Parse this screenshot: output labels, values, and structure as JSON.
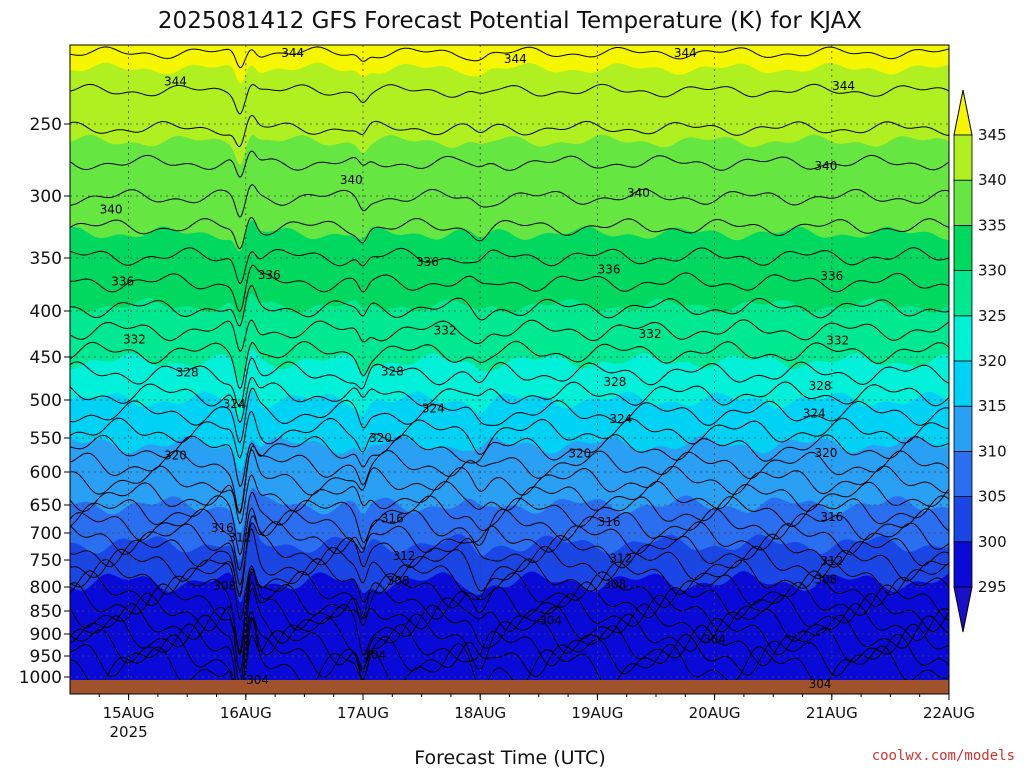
{
  "chart_data": {
    "type": "contour",
    "title": "2025081412 GFS Forecast Potential Temperature (K) for KJAX",
    "xlabel": "Forecast Time (UTC)",
    "ylabel": "",
    "x_ticks": [
      "15AUG",
      "16AUG",
      "17AUG",
      "18AUG",
      "19AUG",
      "20AUG",
      "21AUG",
      "22AUG"
    ],
    "x_tick_year": "2025",
    "x_range_days": [
      14.5,
      22.0
    ],
    "y_ticks": [
      250,
      300,
      350,
      400,
      450,
      500,
      550,
      600,
      650,
      700,
      750,
      800,
      850,
      900,
      950,
      1000
    ],
    "y_range_hpa": [
      200,
      1030
    ],
    "colorbar_levels": [
      295,
      300,
      305,
      310,
      315,
      320,
      325,
      330,
      335,
      340,
      345
    ],
    "colors": [
      "#0a0ad8",
      "#1a46e6",
      "#2a6ff0",
      "#2aa0f5",
      "#00d2f5",
      "#00f0d8",
      "#00e890",
      "#00d860",
      "#66e640",
      "#b0f020",
      "#f6f600"
    ],
    "ground_color": "#a0522d",
    "contours": [
      {
        "label": "344",
        "pressure": 230
      },
      {
        "label": "340",
        "pressure": 298
      },
      {
        "label": "336",
        "pressure": 362
      },
      {
        "label": "332",
        "pressure": 420
      },
      {
        "label": "328",
        "pressure": 472
      },
      {
        "label": "324",
        "pressure": 515
      },
      {
        "label": "320",
        "pressure": 588
      },
      {
        "label": "316",
        "pressure": 672
      },
      {
        "label": "312",
        "pressure": 745
      },
      {
        "label": "308",
        "pressure": 805
      },
      {
        "label": "304",
        "pressure": 895
      }
    ],
    "contour_labels": [
      {
        "text": "344",
        "day": 15.4,
        "p": 223
      },
      {
        "text": "344",
        "day": 16.4,
        "p": 205
      },
      {
        "text": "344",
        "day": 18.3,
        "p": 209
      },
      {
        "text": "344",
        "day": 19.75,
        "p": 205
      },
      {
        "text": "344",
        "day": 21.1,
        "p": 226
      },
      {
        "text": "340",
        "day": 14.85,
        "p": 311
      },
      {
        "text": "340",
        "day": 16.9,
        "p": 289
      },
      {
        "text": "340",
        "day": 19.35,
        "p": 298
      },
      {
        "text": "340",
        "day": 20.95,
        "p": 279
      },
      {
        "text": "336",
        "day": 14.95,
        "p": 372
      },
      {
        "text": "336",
        "day": 16.2,
        "p": 366
      },
      {
        "text": "336",
        "day": 17.55,
        "p": 354
      },
      {
        "text": "336",
        "day": 19.1,
        "p": 361
      },
      {
        "text": "336",
        "day": 21.0,
        "p": 367
      },
      {
        "text": "332",
        "day": 15.05,
        "p": 431
      },
      {
        "text": "332",
        "day": 17.7,
        "p": 421
      },
      {
        "text": "332",
        "day": 19.45,
        "p": 425
      },
      {
        "text": "332",
        "day": 21.05,
        "p": 432
      },
      {
        "text": "328",
        "day": 15.5,
        "p": 468
      },
      {
        "text": "328",
        "day": 17.25,
        "p": 467
      },
      {
        "text": "328",
        "day": 19.15,
        "p": 479
      },
      {
        "text": "328",
        "day": 20.9,
        "p": 484
      },
      {
        "text": "324",
        "day": 15.9,
        "p": 505
      },
      {
        "text": "324",
        "day": 17.6,
        "p": 511
      },
      {
        "text": "324",
        "day": 19.2,
        "p": 525
      },
      {
        "text": "324",
        "day": 20.85,
        "p": 518
      },
      {
        "text": "320",
        "day": 15.4,
        "p": 576
      },
      {
        "text": "320",
        "day": 17.15,
        "p": 550
      },
      {
        "text": "320",
        "day": 18.85,
        "p": 573
      },
      {
        "text": "320",
        "day": 20.95,
        "p": 572
      },
      {
        "text": "316",
        "day": 15.8,
        "p": 691
      },
      {
        "text": "316",
        "day": 17.25,
        "p": 674
      },
      {
        "text": "316",
        "day": 19.1,
        "p": 680
      },
      {
        "text": "316",
        "day": 21.0,
        "p": 671
      },
      {
        "text": "312",
        "day": 15.95,
        "p": 708
      },
      {
        "text": "312",
        "day": 17.35,
        "p": 743
      },
      {
        "text": "312",
        "day": 19.2,
        "p": 747
      },
      {
        "text": "312",
        "day": 21.0,
        "p": 752
      },
      {
        "text": "308",
        "day": 15.82,
        "p": 798
      },
      {
        "text": "308",
        "day": 17.3,
        "p": 789
      },
      {
        "text": "308",
        "day": 19.15,
        "p": 795
      },
      {
        "text": "308",
        "day": 20.95,
        "p": 786
      },
      {
        "text": "304",
        "day": 18.6,
        "p": 871
      },
      {
        "text": "304",
        "day": 17.1,
        "p": 948
      },
      {
        "text": "304",
        "day": 20.0,
        "p": 913
      },
      {
        "text": "304",
        "day": 20.9,
        "p": 1012
      },
      {
        "text": "304",
        "day": 16.1,
        "p": 1005
      }
    ],
    "grid": true,
    "legend": "colorbar-right"
  },
  "credit": "coolwx.com/models"
}
